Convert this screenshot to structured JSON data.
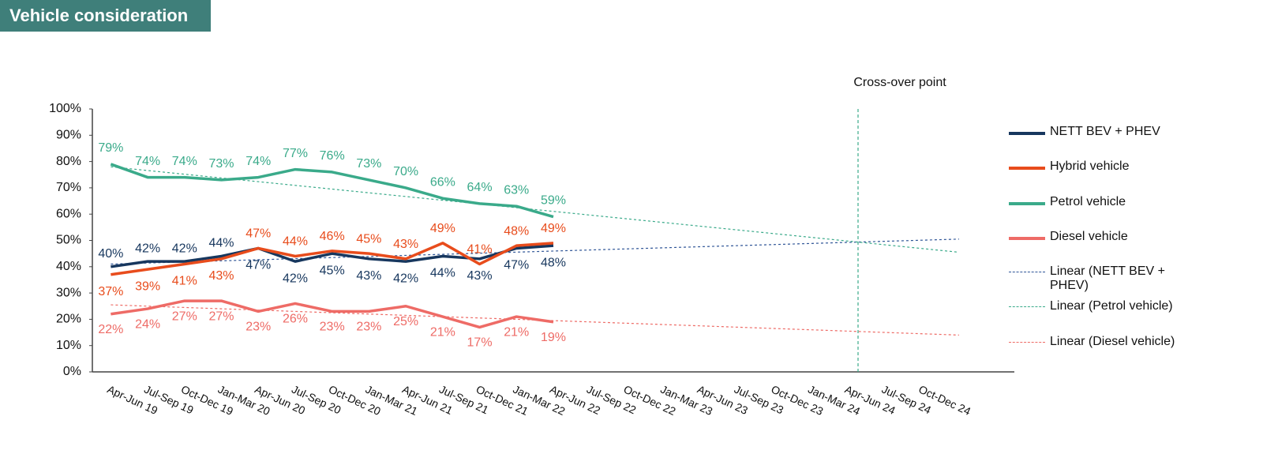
{
  "chart_data": {
    "type": "line",
    "title": "Vehicle consideration",
    "annotation": "Cross-over point",
    "categories": [
      "Apr-Jun 19",
      "Jul-Sep 19",
      "Oct-Dec 19",
      "Jan-Mar 20",
      "Apr-Jun 20",
      "Jul-Sep 20",
      "Oct-Dec 20",
      "Jan-Mar 21",
      "Apr-Jun 21",
      "Jul-Sep 21",
      "Oct-Dec 21",
      "Jan-Mar 22",
      "Apr-Jun 22",
      "Jul-Sep 22",
      "Oct-Dec 22",
      "Jan-Mar 23",
      "Apr-Jun 23",
      "Jul-Sep 23",
      "Oct-Dec 23",
      "Jan-Mar 24",
      "Apr-Jun 24",
      "Jul-Sep 24",
      "Oct-Dec 24",
      null,
      null
    ],
    "ylim": [
      0,
      100
    ],
    "yticks": [
      {
        "value": 0,
        "label": "0%"
      },
      {
        "value": 10,
        "label": "10%"
      },
      {
        "value": 20,
        "label": "20%"
      },
      {
        "value": 30,
        "label": "30%"
      },
      {
        "value": 40,
        "label": "40%"
      },
      {
        "value": 50,
        "label": "50%"
      },
      {
        "value": 60,
        "label": "60%"
      },
      {
        "value": 70,
        "label": "70%"
      },
      {
        "value": 80,
        "label": "80%"
      },
      {
        "value": 90,
        "label": "90%"
      },
      {
        "value": 100,
        "label": "100%"
      }
    ],
    "series": [
      {
        "name": "NETT BEV + PHEV",
        "color": "#17375e",
        "values": [
          40,
          42,
          42,
          44,
          47,
          42,
          45,
          43,
          42,
          44,
          43,
          47,
          48,
          null,
          null,
          null,
          null,
          null,
          null,
          null,
          null,
          null,
          null,
          null,
          null
        ],
        "value_labels": [
          "40%",
          "42%",
          "42%",
          "44%",
          "47%",
          "42%",
          "45%",
          "43%",
          "42%",
          "44%",
          "43%",
          "47%",
          "48%",
          null,
          null,
          null,
          null,
          null,
          null,
          null,
          null,
          null,
          null,
          null,
          null
        ]
      },
      {
        "name": "Hybrid vehicle",
        "color": "#e84c1c",
        "values": [
          37,
          39,
          41,
          43,
          47,
          44,
          46,
          45,
          43,
          49,
          41,
          48,
          49,
          null,
          null,
          null,
          null,
          null,
          null,
          null,
          null,
          null,
          null,
          null,
          null
        ],
        "value_labels": [
          "37%",
          "39%",
          "41%",
          "43%",
          "47%",
          "44%",
          "46%",
          "45%",
          "43%",
          "49%",
          "41%",
          "48%",
          "49%",
          null,
          null,
          null,
          null,
          null,
          null,
          null,
          null,
          null,
          null,
          null,
          null
        ]
      },
      {
        "name": "Petrol vehicle",
        "color": "#3aaa8a",
        "values": [
          79,
          74,
          74,
          73,
          74,
          77,
          76,
          73,
          70,
          66,
          64,
          63,
          59,
          null,
          null,
          null,
          null,
          null,
          null,
          null,
          null,
          null,
          null,
          null,
          null
        ],
        "value_labels": [
          "79%",
          "74%",
          "74%",
          "73%",
          "74%",
          "77%",
          "76%",
          "73%",
          "70%",
          "66%",
          "64%",
          "63%",
          "59%",
          null,
          null,
          null,
          null,
          null,
          null,
          null,
          null,
          null,
          null,
          null,
          null
        ]
      },
      {
        "name": "Diesel vehicle",
        "color": "#ee6b66",
        "values": [
          22,
          24,
          27,
          27,
          23,
          26,
          23,
          23,
          25,
          21,
          17,
          21,
          19,
          null,
          null,
          null,
          null,
          null,
          null,
          null,
          null,
          null,
          null,
          null,
          null
        ],
        "value_labels": [
          "22%",
          "24%",
          "27%",
          "27%",
          "23%",
          "26%",
          "23%",
          "23%",
          "25%",
          "21%",
          "17%",
          "21%",
          "19%",
          null,
          null,
          null,
          null,
          null,
          null,
          null,
          null,
          null,
          null,
          null,
          null
        ]
      }
    ],
    "trendlines": [
      {
        "name": "Linear (NETT BEV + PHEV)",
        "color": "#2f5597",
        "from": 41,
        "to": 50.5
      },
      {
        "name": "Linear (Petrol vehicle)",
        "color": "#3aaa8a",
        "from": 78,
        "to": 45.5
      },
      {
        "name": "Linear (Diesel vehicle)",
        "color": "#ee6b66",
        "from": 25.5,
        "to": 14
      }
    ]
  }
}
